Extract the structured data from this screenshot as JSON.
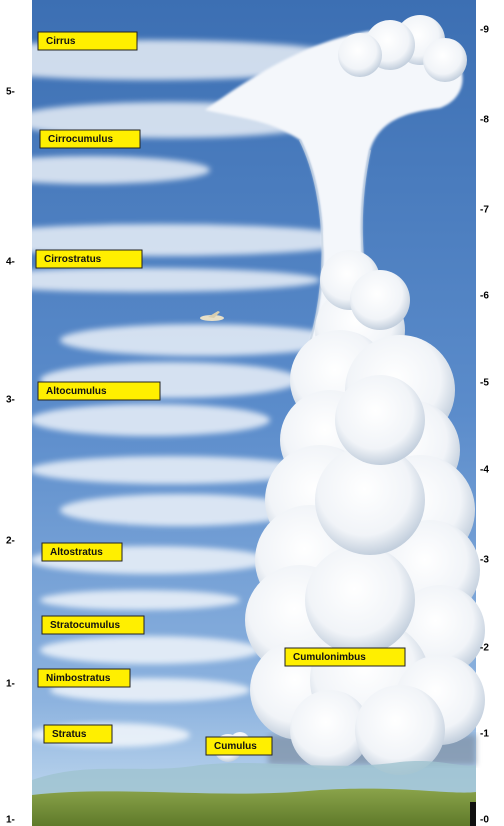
{
  "labels": [
    "Cirrus",
    "Cirrocumulus",
    "Cirrostratus",
    "Altocumulus",
    "Altostratus",
    "Stratocumulus",
    "Nimbostratus",
    "Stratus",
    "Cumulus",
    "Cumulonimbus"
  ],
  "left_axis": [
    "5-",
    "4-",
    "3-",
    "2-",
    "1-",
    "1-"
  ],
  "right_axis": [
    "-9",
    "-8",
    "-7",
    "-6",
    "-5",
    "-4",
    "-3",
    "-2",
    "-1",
    "-0"
  ]
}
